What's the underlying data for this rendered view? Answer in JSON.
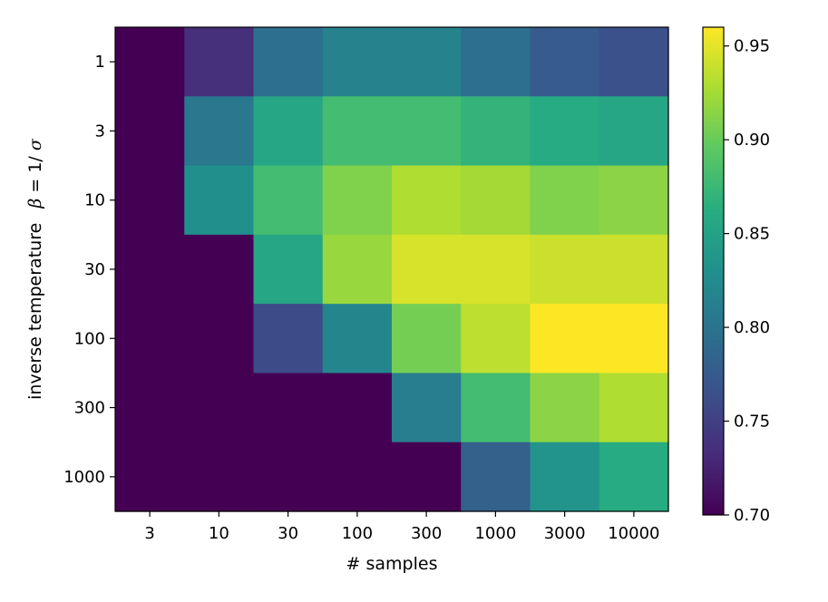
{
  "chart_data": {
    "type": "heatmap",
    "title": "",
    "xlabel": "# samples",
    "ylabel_text": "inverse temperature",
    "ylabel_math_lhs": "β",
    "ylabel_math_eq": " = 1/",
    "ylabel_math_rhs": "σ",
    "x_categories": [
      "3",
      "10",
      "30",
      "100",
      "300",
      "1000",
      "3000",
      "10000"
    ],
    "y_categories": [
      "1",
      "3",
      "10",
      "30",
      "100",
      "300",
      "1000"
    ],
    "values": [
      [
        0.7,
        0.735,
        0.795,
        0.815,
        0.815,
        0.795,
        0.775,
        0.765
      ],
      [
        0.7,
        0.805,
        0.855,
        0.88,
        0.88,
        0.87,
        0.86,
        0.855
      ],
      [
        0.7,
        0.83,
        0.88,
        0.91,
        0.93,
        0.925,
        0.91,
        0.915
      ],
      [
        0.7,
        0.7,
        0.855,
        0.92,
        0.945,
        0.945,
        0.94,
        0.94
      ],
      [
        0.7,
        0.7,
        0.76,
        0.82,
        0.905,
        0.935,
        0.96,
        0.96
      ],
      [
        0.7,
        0.7,
        0.7,
        0.7,
        0.81,
        0.88,
        0.915,
        0.93
      ],
      [
        0.7,
        0.7,
        0.7,
        0.7,
        0.7,
        0.78,
        0.835,
        0.86
      ]
    ],
    "colorbar": {
      "vmin": 0.7,
      "vmax": 0.96,
      "ticks": [
        0.7,
        0.75,
        0.8,
        0.85,
        0.9,
        0.95
      ],
      "tick_labels": [
        "0.70",
        "0.75",
        "0.80",
        "0.85",
        "0.90",
        "0.95"
      ],
      "colormap": "viridis"
    }
  }
}
